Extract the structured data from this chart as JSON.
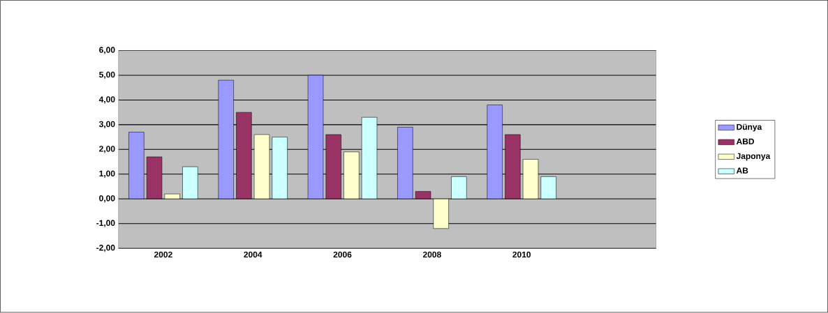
{
  "chart_data": {
    "type": "bar",
    "categories": [
      "2002",
      "2004",
      "2006",
      "2008",
      "2010",
      null
    ],
    "series": [
      {
        "name": "Dünya",
        "color": "#9999ff",
        "values": [
          2.7,
          4.8,
          5.0,
          2.9,
          3.8,
          null
        ]
      },
      {
        "name": "ABD",
        "color": "#993366",
        "values": [
          1.7,
          3.5,
          2.6,
          0.3,
          2.6,
          null
        ]
      },
      {
        "name": "Japonya",
        "color": "#ffffcc",
        "values": [
          0.2,
          2.6,
          1.9,
          -1.2,
          1.6,
          null
        ]
      },
      {
        "name": "AB",
        "color": "#ccffff",
        "values": [
          1.3,
          2.5,
          3.3,
          0.9,
          0.9,
          null
        ]
      }
    ],
    "ylim": [
      -2,
      6
    ],
    "yticks": [
      {
        "value": -2,
        "label": "-2,00"
      },
      {
        "value": -1,
        "label": "-1,00"
      },
      {
        "value": 0,
        "label": "0,00"
      },
      {
        "value": 1,
        "label": "1,00"
      },
      {
        "value": 2,
        "label": "2,00"
      },
      {
        "value": 3,
        "label": "3,00"
      },
      {
        "value": 4,
        "label": "4,00"
      },
      {
        "value": 5,
        "label": "5,00"
      },
      {
        "value": 6,
        "label": "6,00"
      }
    ],
    "grid": "y",
    "legend": "right"
  }
}
